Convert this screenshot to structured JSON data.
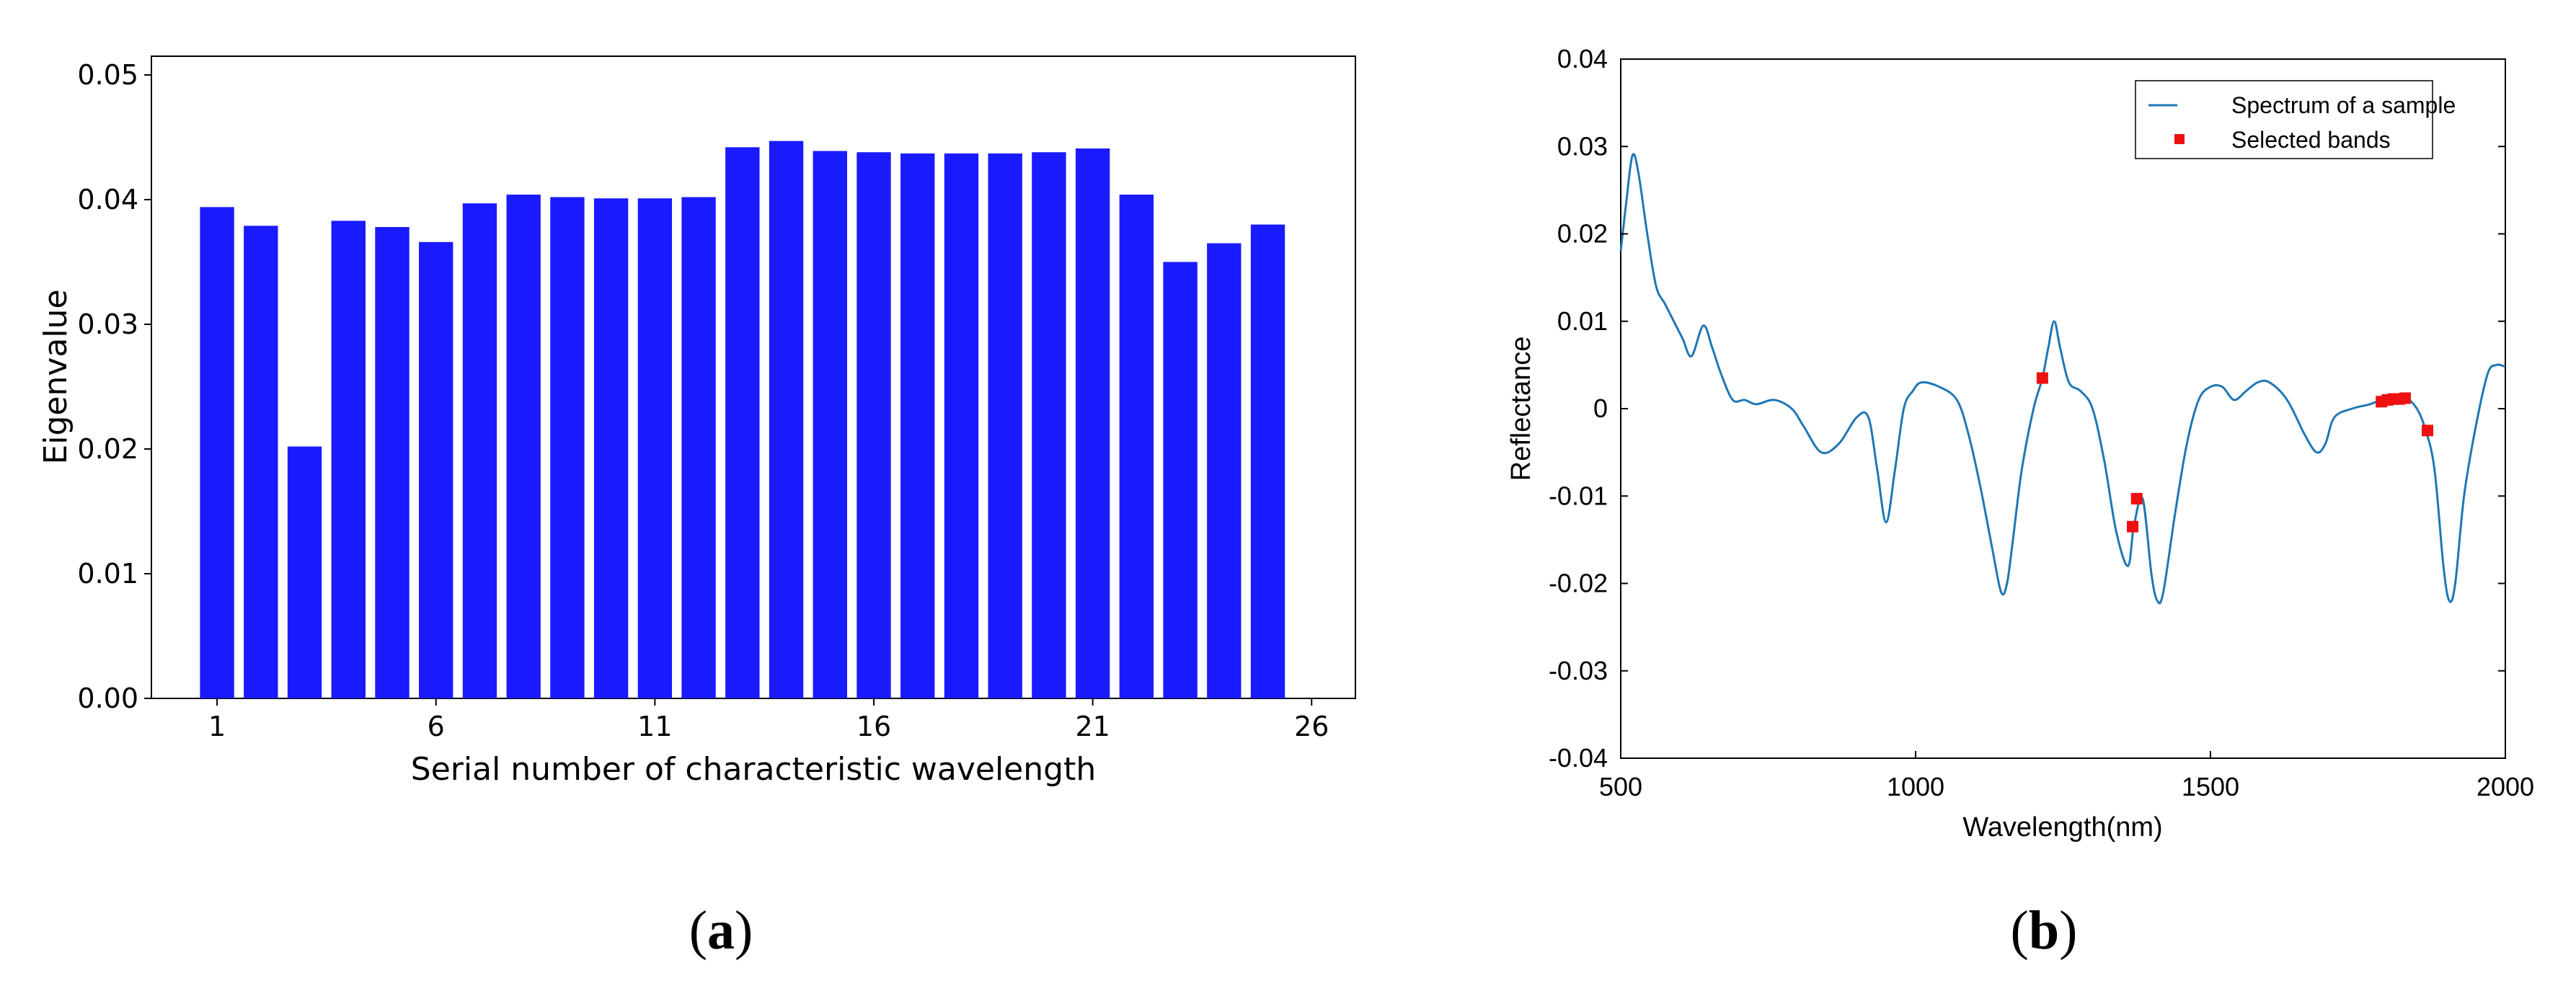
{
  "panels": {
    "a": {
      "open": "(",
      "letter": "a",
      "close": ")"
    },
    "b": {
      "open": "(",
      "letter": "b",
      "close": ")"
    }
  },
  "chart_data": [
    {
      "type": "bar",
      "panel": "a",
      "xlabel": "Serial number of characteristic wavelength",
      "ylabel": "Eigenvalue",
      "x": [
        1,
        2,
        3,
        4,
        5,
        6,
        7,
        8,
        9,
        10,
        11,
        12,
        13,
        14,
        15,
        16,
        17,
        18,
        19,
        20,
        21,
        22,
        23,
        24,
        25
      ],
      "values": [
        0.0394,
        0.0379,
        0.0202,
        0.0383,
        0.0378,
        0.0366,
        0.0397,
        0.0404,
        0.0402,
        0.0401,
        0.0401,
        0.0402,
        0.0442,
        0.0447,
        0.0439,
        0.0438,
        0.0437,
        0.0437,
        0.0437,
        0.0438,
        0.0441,
        0.0404,
        0.035,
        0.0365,
        0.038
      ],
      "xlim": [
        -0.5,
        27
      ],
      "ylim": [
        0,
        0.0515
      ],
      "xticks": [
        "1",
        "6",
        "11",
        "16",
        "21",
        "26"
      ],
      "xtick_values": [
        1,
        6,
        11,
        16,
        21,
        26
      ],
      "yticks": [
        "0.00",
        "0.01",
        "0.02",
        "0.03",
        "0.04",
        "0.05"
      ],
      "ytick_values": [
        0,
        0.01,
        0.02,
        0.03,
        0.04,
        0.05
      ],
      "color": "#1a1aff",
      "grid": false
    },
    {
      "type": "line",
      "panel": "b",
      "xlabel": "Wavelength(nm)",
      "ylabel": "Reflectance",
      "xlim": [
        500,
        2000
      ],
      "ylim": [
        -0.04,
        0.04
      ],
      "xticks": [
        "500",
        "1000",
        "1500",
        "2000"
      ],
      "xtick_values": [
        500,
        1000,
        1500,
        2000
      ],
      "yticks": [
        "-0.04",
        "-0.03",
        "-0.02",
        "-0.01",
        "0",
        "0.01",
        "0.02",
        "0.03",
        "0.04"
      ],
      "ytick_values": [
        -0.04,
        -0.03,
        -0.02,
        -0.01,
        0,
        0.01,
        0.02,
        0.03,
        0.04
      ],
      "legend_position": "top-right",
      "grid": false,
      "series": [
        {
          "name": "Spectrum of a sample",
          "style": "line",
          "color": "#1f77b4",
          "x": [
            500,
            510,
            520,
            530,
            545,
            560,
            575,
            590,
            605,
            620,
            640,
            655,
            670,
            690,
            710,
            730,
            760,
            790,
            810,
            840,
            870,
            900,
            920,
            935,
            950,
            965,
            980,
            995,
            1010,
            1040,
            1070,
            1090,
            1110,
            1130,
            1145,
            1155,
            1165,
            1180,
            1200,
            1215,
            1225,
            1235,
            1245,
            1260,
            1280,
            1300,
            1320,
            1340,
            1360,
            1370,
            1385,
            1400,
            1410,
            1420,
            1440,
            1460,
            1480,
            1500,
            1520,
            1540,
            1560,
            1580,
            1600,
            1630,
            1660,
            1680,
            1695,
            1710,
            1740,
            1770,
            1790,
            1810,
            1830,
            1850,
            1865,
            1880,
            1895,
            1905,
            1915,
            1930,
            1950,
            1970,
            1985,
            2000
          ],
          "y": [
            0.018,
            0.024,
            0.029,
            0.027,
            0.02,
            0.014,
            0.012,
            0.01,
            0.008,
            0.006,
            0.0095,
            0.007,
            0.004,
            0.001,
            0.001,
            0.0005,
            0.001,
            0.0,
            -0.002,
            -0.005,
            -0.004,
            -0.001,
            -0.001,
            -0.007,
            -0.013,
            -0.007,
            0.0,
            0.002,
            0.003,
            0.0025,
            0.001,
            -0.003,
            -0.009,
            -0.016,
            -0.021,
            -0.02,
            -0.015,
            -0.007,
            0.0,
            0.0035,
            0.007,
            0.01,
            0.007,
            0.003,
            0.002,
            0.0,
            -0.006,
            -0.014,
            -0.018,
            -0.0135,
            -0.0103,
            -0.019,
            -0.022,
            -0.021,
            -0.012,
            -0.004,
            0.001,
            0.0025,
            0.0025,
            0.001,
            0.002,
            0.003,
            0.003,
            0.001,
            -0.003,
            -0.005,
            -0.004,
            -0.001,
            0.0,
            0.0005,
            0.001,
            0.0012,
            0.0013,
            0.0,
            -0.0025,
            -0.007,
            -0.018,
            -0.022,
            -0.02,
            -0.01,
            -0.002,
            0.004,
            0.005,
            0.0048
          ]
        },
        {
          "name": "Selected bands",
          "style": "scatter",
          "color": "#ee1111",
          "x": [
            1215,
            1368,
            1375,
            1790,
            1800,
            1810,
            1820,
            1830,
            1868
          ],
          "y": [
            0.0035,
            -0.0135,
            -0.0103,
            0.0008,
            0.001,
            0.0011,
            0.0011,
            0.0012,
            -0.0025
          ]
        }
      ]
    }
  ]
}
